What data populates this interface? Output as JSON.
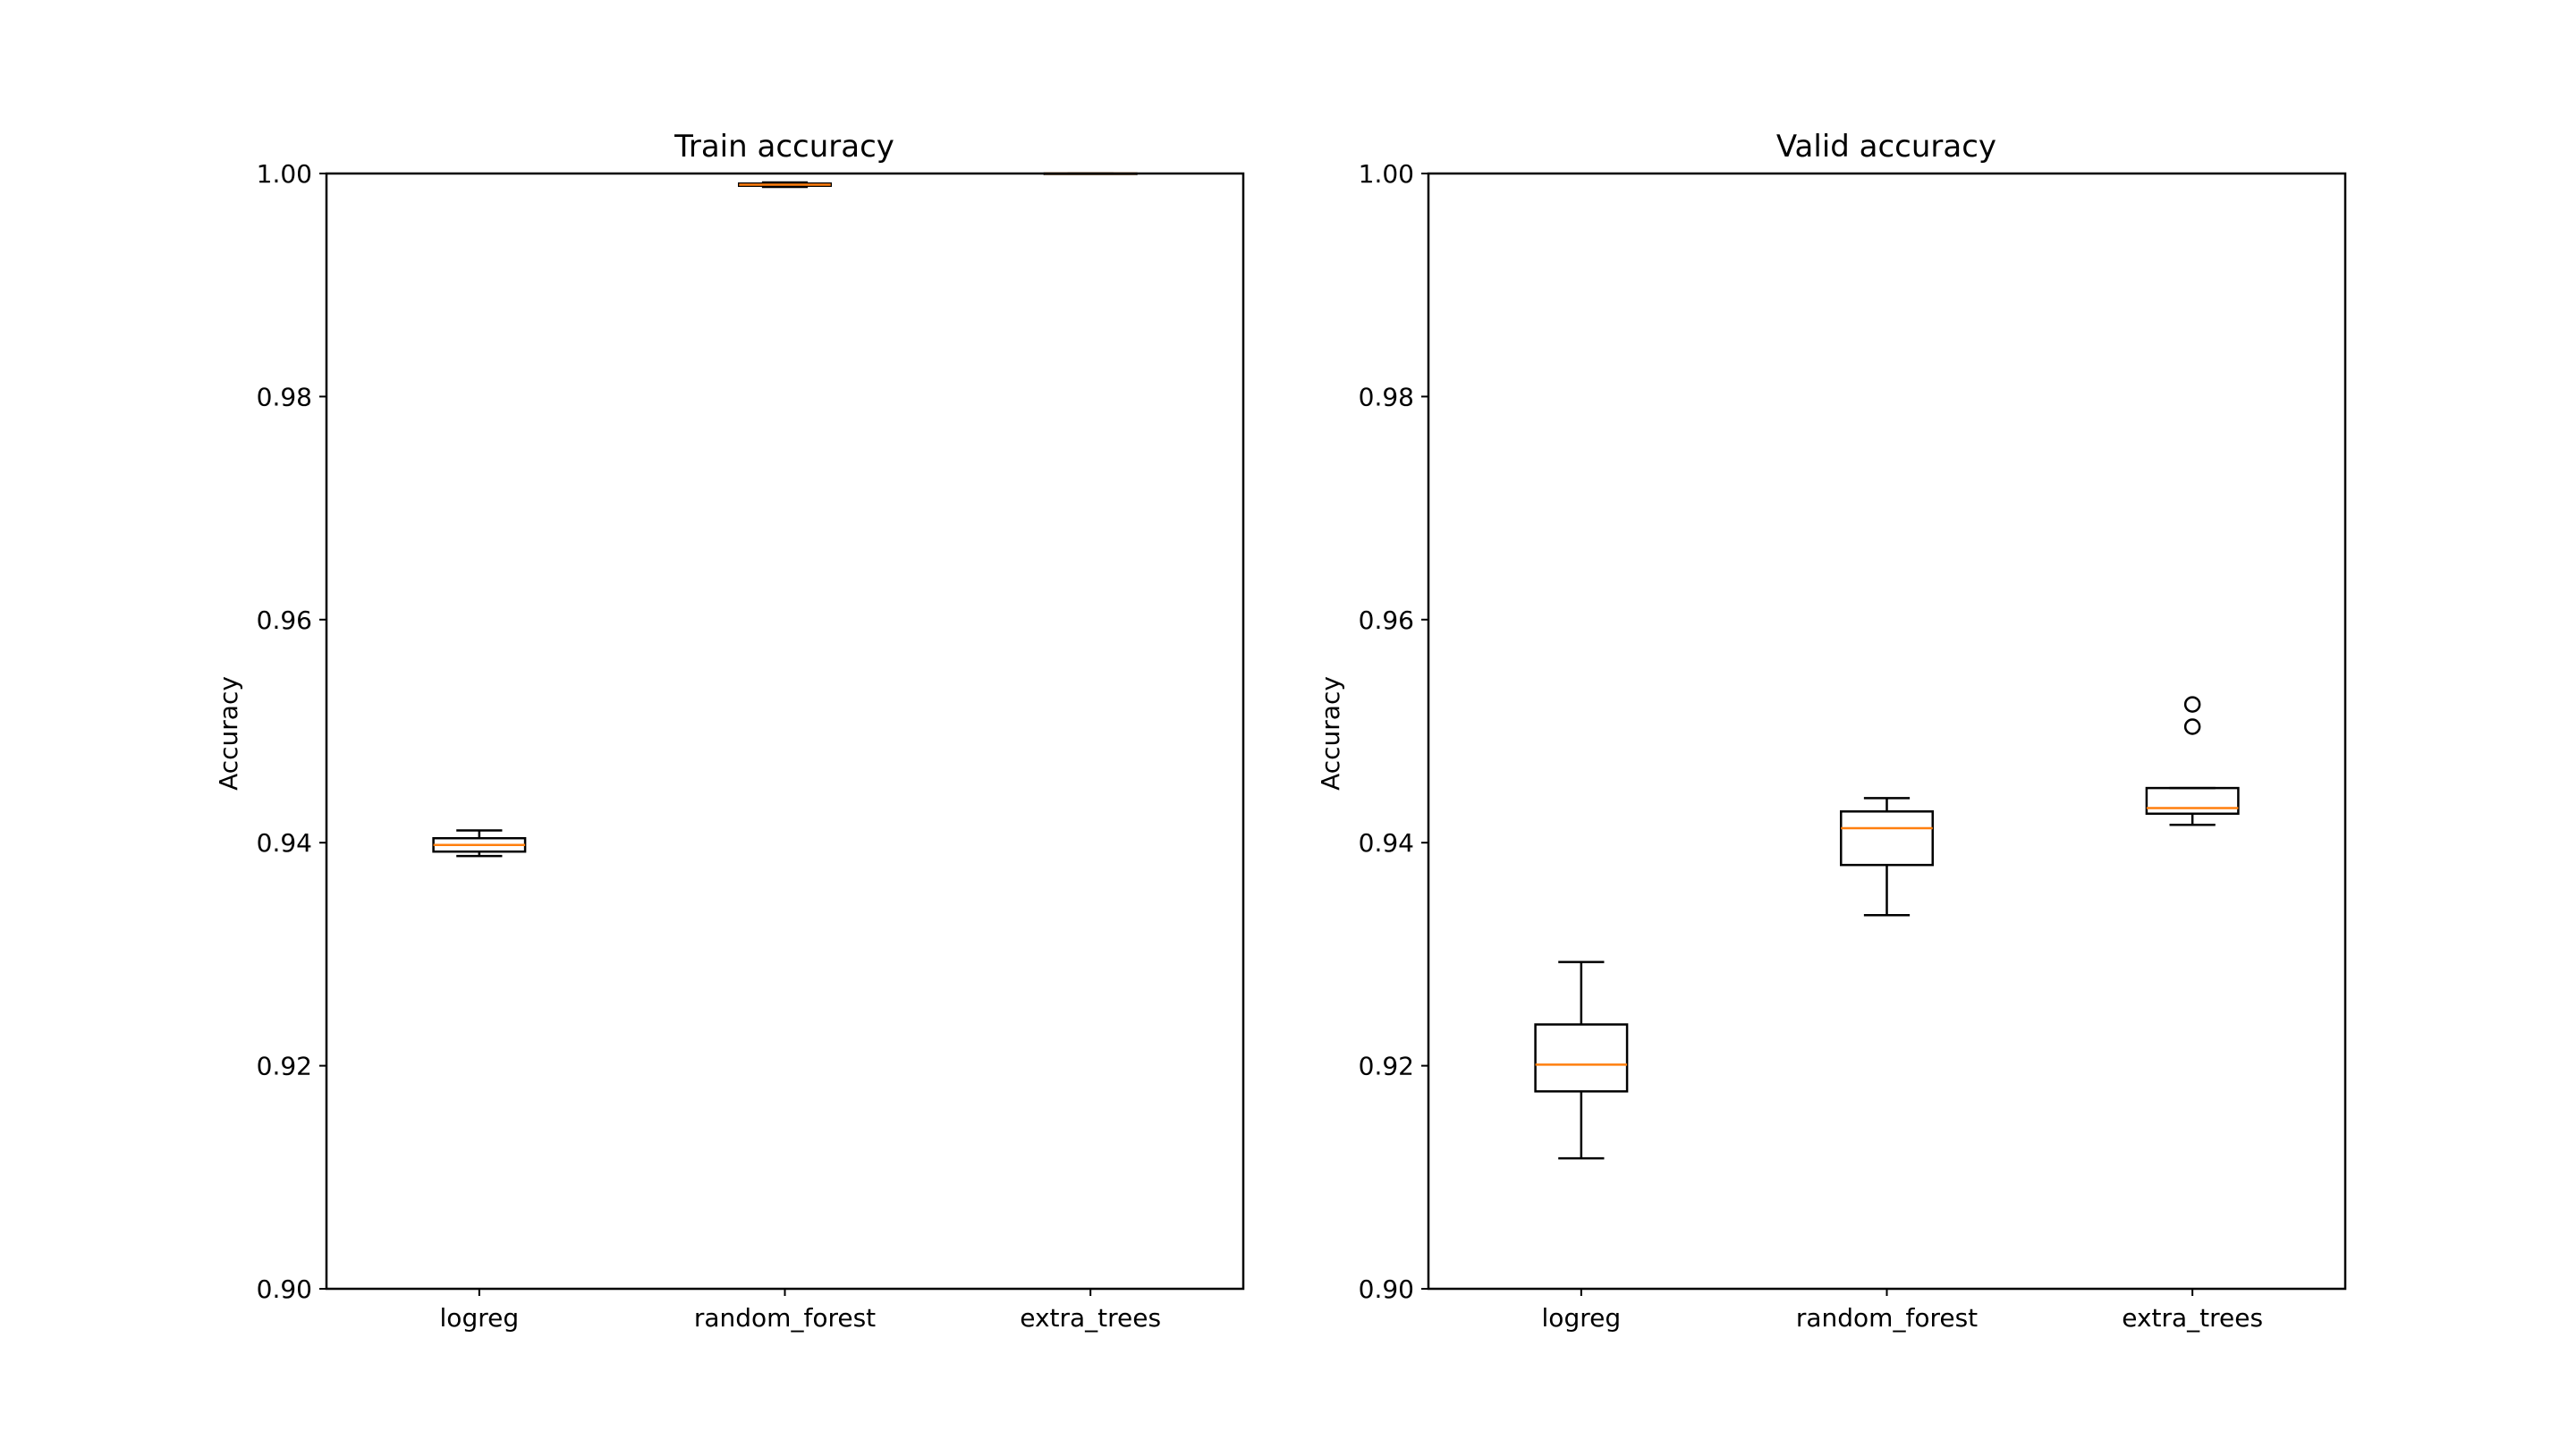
{
  "chart_data": [
    {
      "type": "box",
      "title": "Train accuracy",
      "xlabel": "",
      "ylabel": "Accuracy",
      "ylim": [
        0.9,
        1.0
      ],
      "yticks": [
        "0.90",
        "0.92",
        "0.94",
        "0.96",
        "0.98",
        "1.00"
      ],
      "categories": [
        "logreg",
        "random_forest",
        "extra_trees"
      ],
      "boxes": [
        {
          "whisker_low": 0.9388,
          "q1": 0.9392,
          "median": 0.9398,
          "q3": 0.9404,
          "whisker_high": 0.9411,
          "outliers": []
        },
        {
          "whisker_low": 0.9988,
          "q1": 0.9989,
          "median": 0.999,
          "q3": 0.9991,
          "whisker_high": 0.9992,
          "outliers": []
        },
        {
          "whisker_low": 1.0,
          "q1": 1.0,
          "median": 1.0,
          "q3": 1.0,
          "whisker_high": 1.0,
          "outliers": []
        }
      ],
      "grid": false
    },
    {
      "type": "box",
      "title": "Valid accuracy",
      "xlabel": "",
      "ylabel": "Accuracy",
      "ylim": [
        0.9,
        1.0
      ],
      "yticks": [
        "0.90",
        "0.92",
        "0.94",
        "0.96",
        "0.98",
        "1.00"
      ],
      "categories": [
        "logreg",
        "random_forest",
        "extra_trees"
      ],
      "boxes": [
        {
          "whisker_low": 0.9117,
          "q1": 0.9177,
          "median": 0.9201,
          "q3": 0.9237,
          "whisker_high": 0.9293,
          "outliers": []
        },
        {
          "whisker_low": 0.9335,
          "q1": 0.938,
          "median": 0.9413,
          "q3": 0.9428,
          "whisker_high": 0.944,
          "outliers": []
        },
        {
          "whisker_low": 0.9416,
          "q1": 0.9426,
          "median": 0.9431,
          "q3": 0.9449,
          "whisker_high": 0.9449,
          "outliers": [
            0.9504,
            0.9524
          ]
        }
      ],
      "grid": false
    }
  ],
  "colors": {
    "box": "#000000",
    "median": "#ff7f0e",
    "background": "#ffffff"
  }
}
